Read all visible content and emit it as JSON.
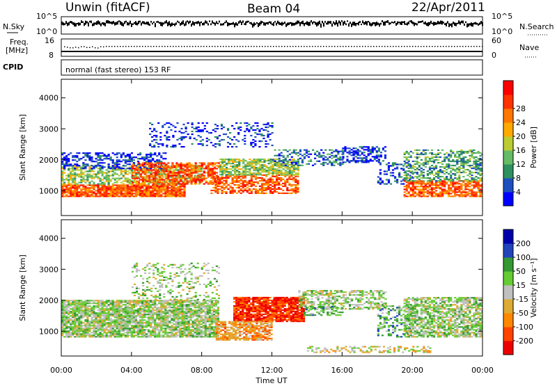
{
  "header": {
    "station": "Unwin (fitACF)",
    "beam": "Beam 04",
    "date": "22/Apr/2011"
  },
  "noise_panel": {
    "left_label": "N.Sky",
    "right_label": "N.Search",
    "ticks_top": "10^5",
    "ticks_bottom": "10^0"
  },
  "freq_panel": {
    "left_label_1": "Freq.",
    "left_label_2": "[MHz]",
    "left_ticks": [
      "16",
      "8"
    ],
    "right_ticks": [
      "60",
      "0"
    ],
    "right_label": "Nave",
    "cpid_label": "CPID",
    "cpid_text": "normal (fast stereo) 153 RF"
  },
  "colors": {
    "power_scale": [
      "#0000ff",
      "#1f4fbf",
      "#2e8f5f",
      "#66bb66",
      "#bbcc33",
      "#ffaa00",
      "#ff7700",
      "#ff3300",
      "#ff0000"
    ],
    "velocity_scale": [
      "#0000aa",
      "#2244bb",
      "#339933",
      "#66cc33",
      "#c0c0c0",
      "#ddaa33",
      "#ff8800",
      "#ff4400",
      "#ee0000"
    ]
  },
  "chart_data": [
    {
      "type": "heatmap",
      "ylabel": "Slant Range [km]",
      "y_ticks": [
        "1000",
        "2000",
        "3000",
        "4000"
      ],
      "ylim": [
        200,
        4600
      ],
      "xlim": [
        "00:00",
        "00:00"
      ],
      "colorbar_label": "Power [dB]",
      "colorbar_ticks": [
        "4",
        "8",
        "12",
        "16",
        "20",
        "24",
        "28"
      ],
      "colorbar_range": [
        0,
        32
      ]
    },
    {
      "type": "heatmap",
      "ylabel": "Slant Range [km]",
      "y_ticks": [
        "1000",
        "2000",
        "3000",
        "4000"
      ],
      "ylim": [
        200,
        4600
      ],
      "xlabel": "Time UT",
      "x_ticks": [
        "00:00",
        "04:00",
        "08:00",
        "12:00",
        "16:00",
        "20:00",
        "00:00"
      ],
      "colorbar_label": "Velocity [m s⁻¹]",
      "colorbar_ticks": [
        "200",
        "100",
        "50",
        "15",
        "-15",
        "-50",
        "-100",
        "-200"
      ]
    }
  ]
}
